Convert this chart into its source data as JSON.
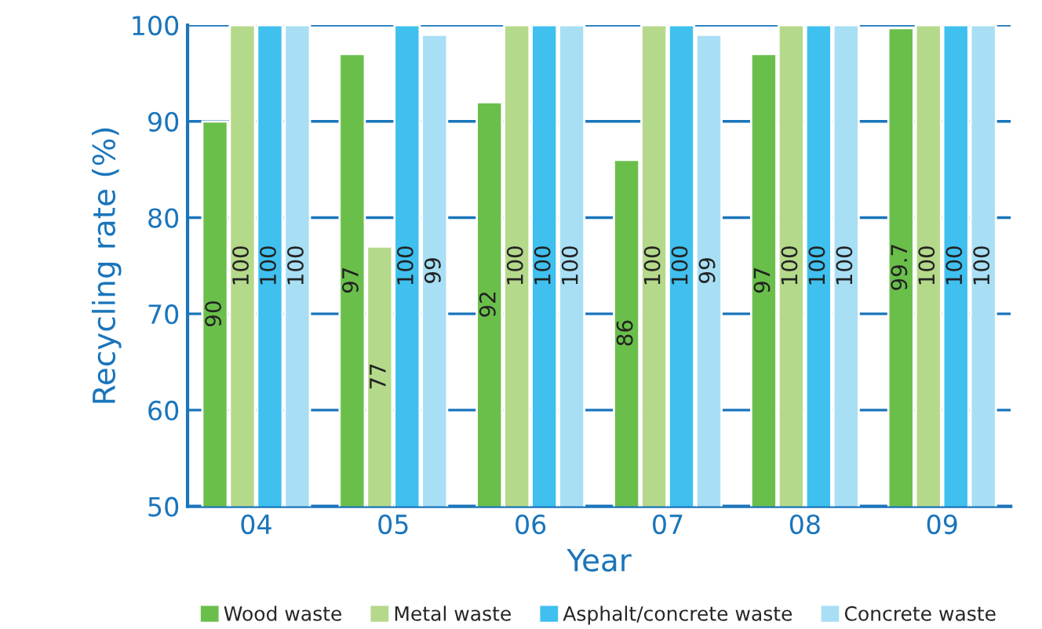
{
  "chart_data": {
    "type": "bar",
    "xlabel": "Year",
    "ylabel": "Recycling rate (%)",
    "categories": [
      "04",
      "05",
      "06",
      "07",
      "08",
      "09"
    ],
    "series": [
      {
        "name": "Wood waste",
        "color": "#6abf4b",
        "values": [
          90,
          97,
          92,
          86,
          97,
          99.7
        ]
      },
      {
        "name": "Metal waste",
        "color": "#b5d98a",
        "values": [
          100,
          77,
          100,
          100,
          100,
          100
        ]
      },
      {
        "name": "Asphalt/concrete waste",
        "color": "#3fc0ef",
        "values": [
          100,
          100,
          100,
          100,
          100,
          100
        ]
      },
      {
        "name": "Concrete waste",
        "color": "#a8dff5",
        "values": [
          100,
          99,
          100,
          99,
          100,
          100
        ]
      }
    ],
    "ylim": [
      50,
      100
    ],
    "yticks": [
      50,
      60,
      70,
      80,
      90,
      100
    ],
    "grid": "y",
    "legend": "bottom",
    "data_labels": true
  }
}
